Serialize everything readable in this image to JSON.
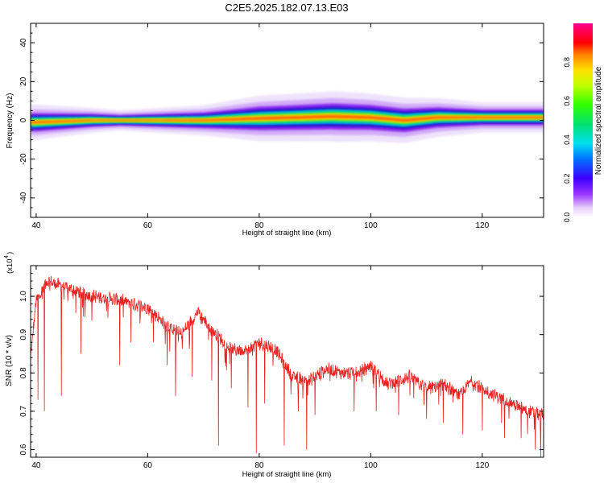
{
  "title": "C2E5.2025.182.07.13.E03",
  "chart_data": [
    {
      "type": "heatmap",
      "xlabel": "Height of straight line (km)",
      "ylabel": "Frequency (Hz)",
      "xlim": [
        39,
        131
      ],
      "ylim": [
        -50,
        50
      ],
      "xticks": [
        40,
        60,
        80,
        100,
        120
      ],
      "yticks": [
        40,
        20,
        0,
        -20,
        -40
      ],
      "center_frequency_by_height": [
        {
          "x": 40,
          "y": -1.0
        },
        {
          "x": 50,
          "y": 0.0
        },
        {
          "x": 60,
          "y": 0.0
        },
        {
          "x": 70,
          "y": 0.0
        },
        {
          "x": 80,
          "y": 1.0
        },
        {
          "x": 87,
          "y": 1.5
        },
        {
          "x": 93,
          "y": 2.0
        },
        {
          "x": 100,
          "y": 1.5
        },
        {
          "x": 106,
          "y": 0.0
        },
        {
          "x": 112,
          "y": 1.5
        },
        {
          "x": 120,
          "y": 1.5
        },
        {
          "x": 131,
          "y": 1.5
        }
      ],
      "band_half_width_hz": [
        {
          "x": 40,
          "w": 3.5
        },
        {
          "x": 55,
          "w": 2.0
        },
        {
          "x": 70,
          "w": 3.0
        },
        {
          "x": 80,
          "w": 4.5
        },
        {
          "x": 94,
          "w": 5.0
        },
        {
          "x": 106,
          "w": 4.5
        },
        {
          "x": 120,
          "w": 3.0
        },
        {
          "x": 131,
          "w": 3.0
        }
      ],
      "colorbar": {
        "label": "Normalized spectral amplitude",
        "range": [
          0,
          1
        ],
        "ticks": [
          "0.0",
          "0.2",
          "0.4",
          "0.6",
          "0.8"
        ]
      },
      "grid": false
    },
    {
      "type": "line",
      "xlabel": "Height of straight line (km)",
      "ylabel": "SNR (10 * v/v)",
      "scale_label": "(x10",
      "scale_exponent": "4",
      "xlim": [
        39,
        131
      ],
      "ylim": [
        0.58,
        1.08
      ],
      "xticks": [
        40,
        60,
        80,
        100,
        120
      ],
      "yticks": [
        "1.0",
        "0.9",
        "0.8",
        "0.7",
        "0.6"
      ],
      "series": [
        {
          "color": "#e8201e",
          "trend": [
            {
              "x": 39,
              "y": 0.84
            },
            {
              "x": 40,
              "y": 0.99
            },
            {
              "x": 42,
              "y": 1.04
            },
            {
              "x": 46,
              "y": 1.02
            },
            {
              "x": 50,
              "y": 1.0
            },
            {
              "x": 55,
              "y": 0.99
            },
            {
              "x": 60,
              "y": 0.97
            },
            {
              "x": 63,
              "y": 0.93
            },
            {
              "x": 66,
              "y": 0.9
            },
            {
              "x": 69,
              "y": 0.96
            },
            {
              "x": 71,
              "y": 0.92
            },
            {
              "x": 73,
              "y": 0.89
            },
            {
              "x": 75,
              "y": 0.86
            },
            {
              "x": 78,
              "y": 0.86
            },
            {
              "x": 80,
              "y": 0.88
            },
            {
              "x": 83,
              "y": 0.86
            },
            {
              "x": 86,
              "y": 0.79
            },
            {
              "x": 89,
              "y": 0.78
            },
            {
              "x": 92,
              "y": 0.81
            },
            {
              "x": 95,
              "y": 0.8
            },
            {
              "x": 98,
              "y": 0.8
            },
            {
              "x": 100,
              "y": 0.82
            },
            {
              "x": 103,
              "y": 0.77
            },
            {
              "x": 107,
              "y": 0.79
            },
            {
              "x": 110,
              "y": 0.76
            },
            {
              "x": 113,
              "y": 0.77
            },
            {
              "x": 116,
              "y": 0.74
            },
            {
              "x": 118,
              "y": 0.78
            },
            {
              "x": 121,
              "y": 0.75
            },
            {
              "x": 124,
              "y": 0.73
            },
            {
              "x": 128,
              "y": 0.7
            },
            {
              "x": 131,
              "y": 0.69
            }
          ],
          "dips": [
            {
              "x": 40.3,
              "y": 0.73
            },
            {
              "x": 41.5,
              "y": 0.7
            },
            {
              "x": 44.5,
              "y": 0.74
            },
            {
              "x": 48.0,
              "y": 0.85
            },
            {
              "x": 55.0,
              "y": 0.82
            },
            {
              "x": 57.0,
              "y": 0.88
            },
            {
              "x": 61.0,
              "y": 0.88
            },
            {
              "x": 63.5,
              "y": 0.82
            },
            {
              "x": 65.0,
              "y": 0.74
            },
            {
              "x": 68.0,
              "y": 0.79
            },
            {
              "x": 71.5,
              "y": 0.78
            },
            {
              "x": 72.7,
              "y": 0.61
            },
            {
              "x": 75.0,
              "y": 0.76
            },
            {
              "x": 78.0,
              "y": 0.71
            },
            {
              "x": 79.5,
              "y": 0.59
            },
            {
              "x": 81.0,
              "y": 0.72
            },
            {
              "x": 84.5,
              "y": 0.61
            },
            {
              "x": 87.0,
              "y": 0.7
            },
            {
              "x": 88.5,
              "y": 0.6
            },
            {
              "x": 90.0,
              "y": 0.69
            },
            {
              "x": 97.0,
              "y": 0.7
            },
            {
              "x": 101.0,
              "y": 0.7
            },
            {
              "x": 105.0,
              "y": 0.69
            },
            {
              "x": 110.0,
              "y": 0.68
            },
            {
              "x": 113.0,
              "y": 0.67
            },
            {
              "x": 116.5,
              "y": 0.64
            },
            {
              "x": 120.0,
              "y": 0.65
            },
            {
              "x": 124.0,
              "y": 0.63
            },
            {
              "x": 127.0,
              "y": 0.63
            },
            {
              "x": 129.5,
              "y": 0.6
            },
            {
              "x": 130.5,
              "y": 0.58
            }
          ]
        }
      ],
      "grid": false
    }
  ]
}
